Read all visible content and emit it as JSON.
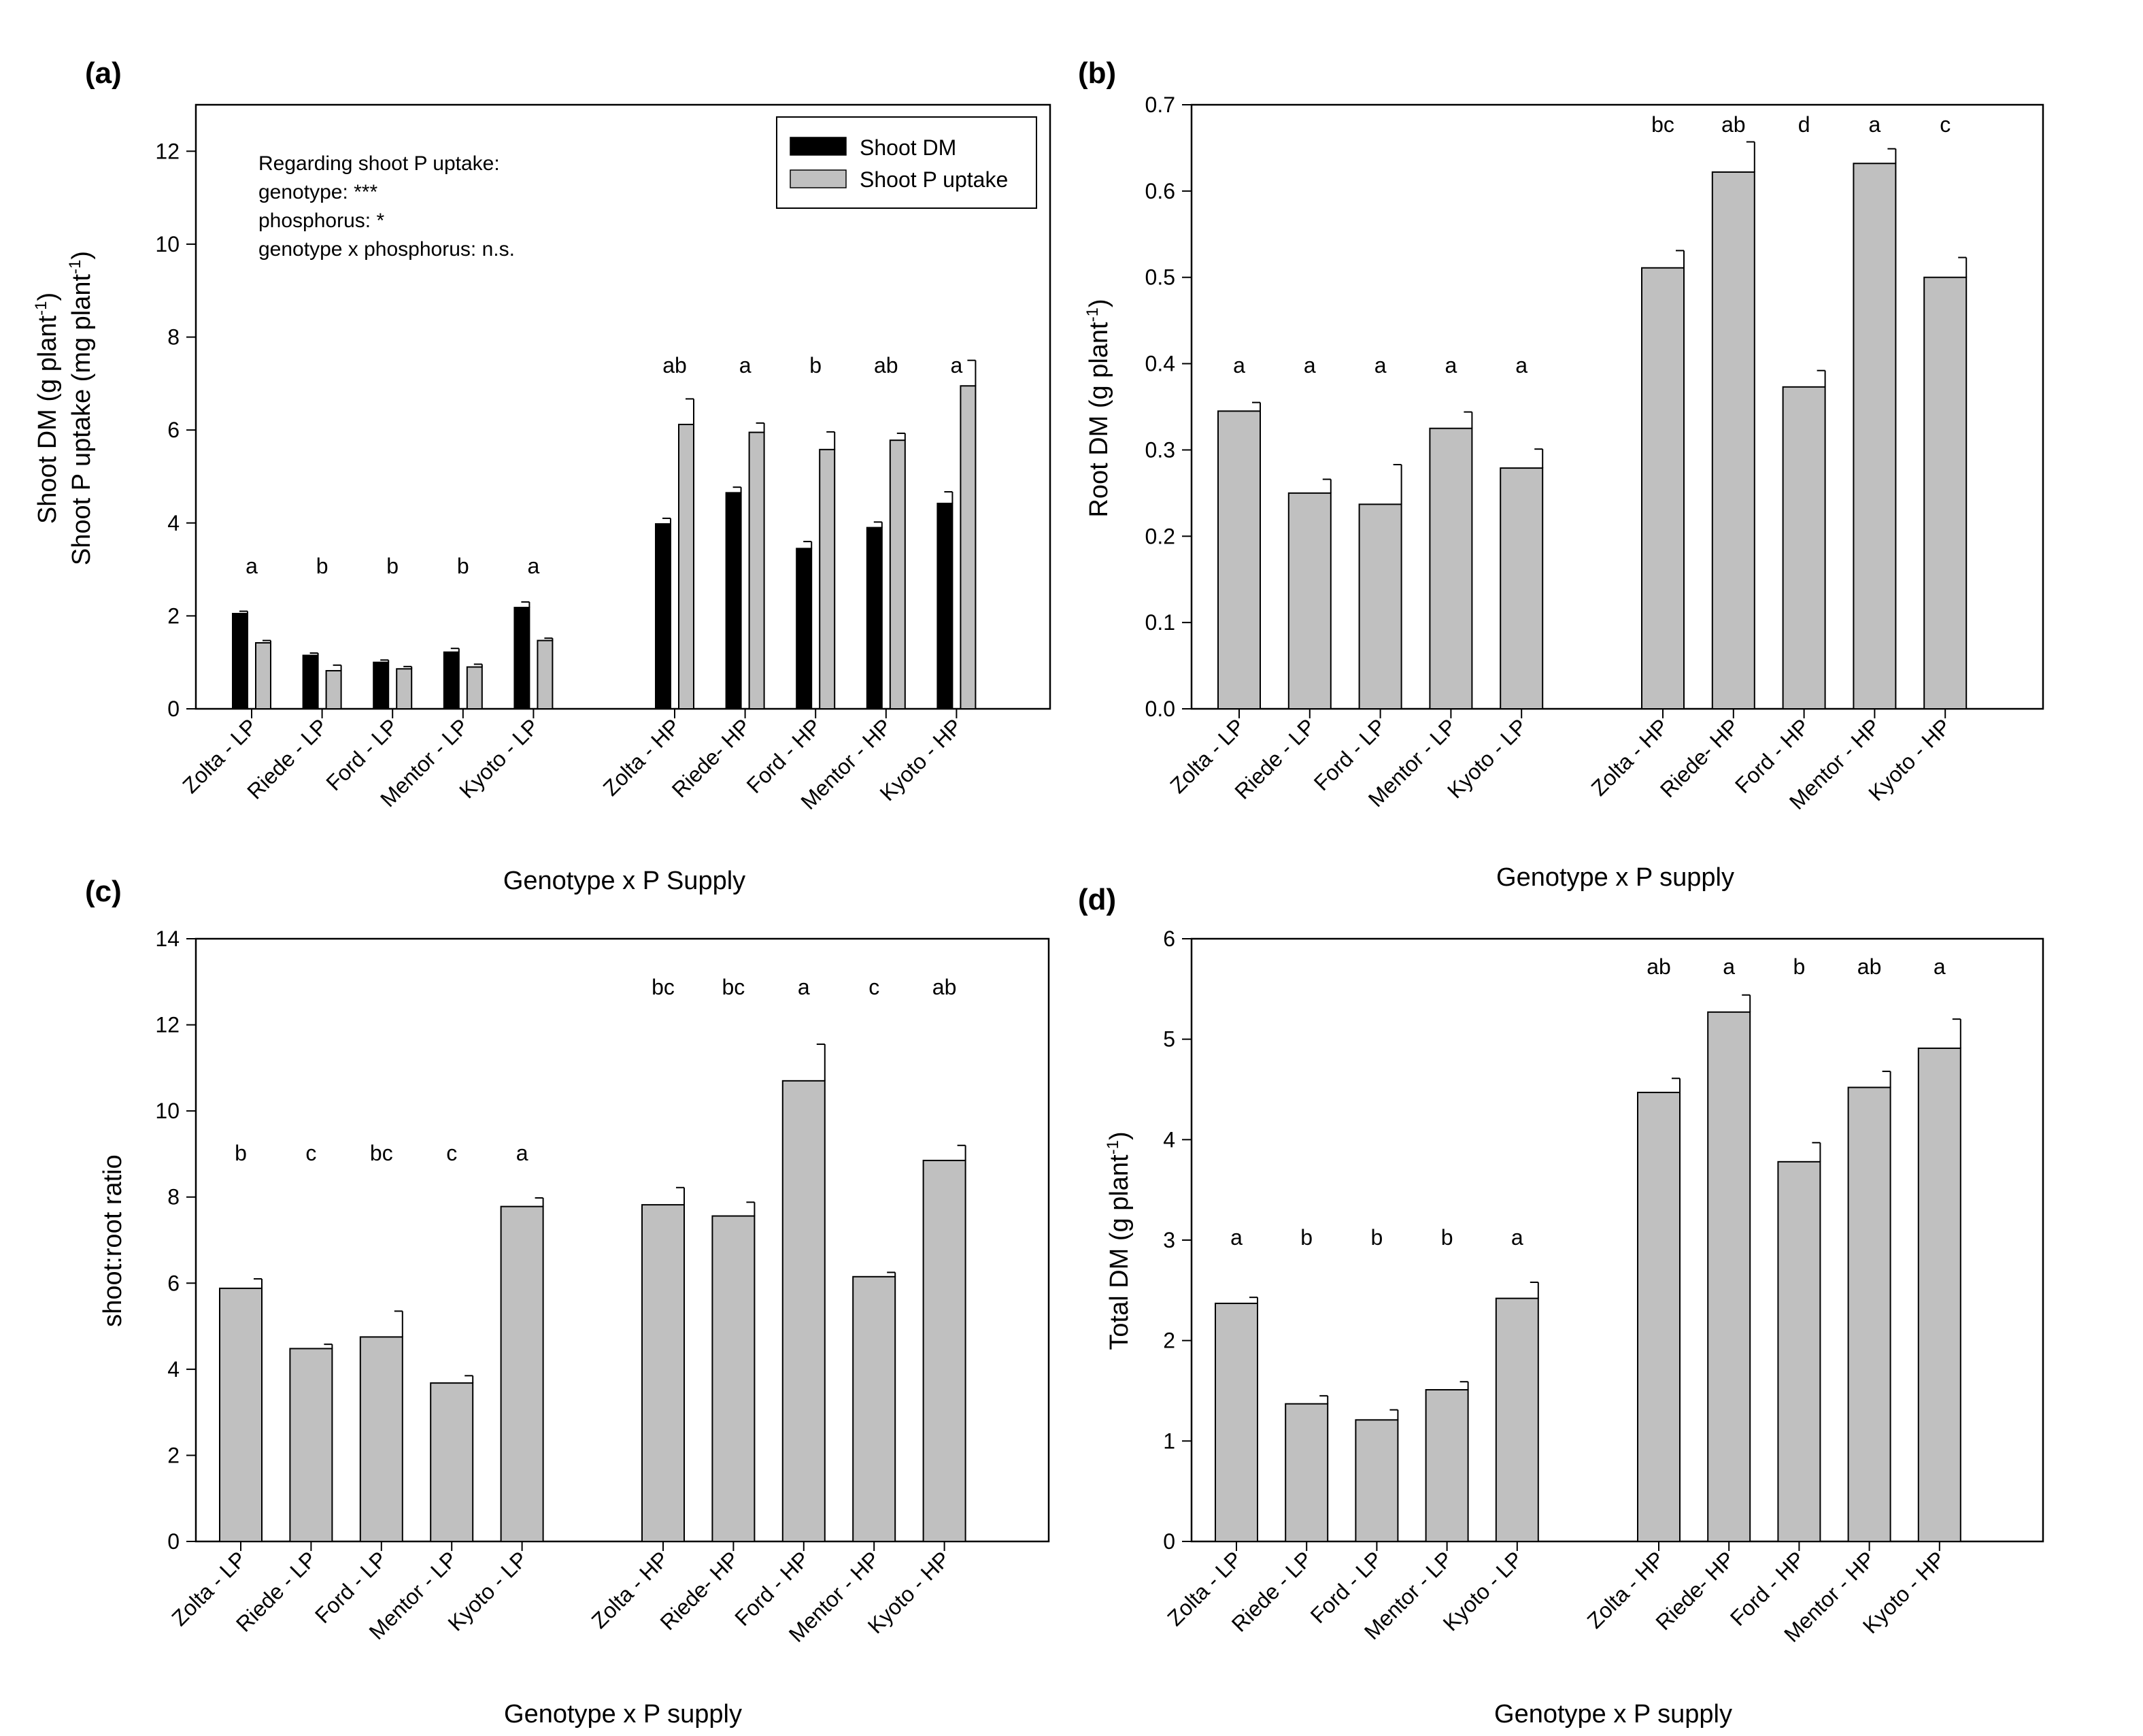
{
  "chart_data": [
    {
      "panel": "(a)",
      "type": "bar",
      "categories": [
        "Zolta - LP",
        "Riede - LP",
        "Ford - LP",
        "Mentor - LP",
        "Kyoto - LP",
        "Zolta - HP",
        "Riede- HP",
        "Ford - HP",
        "Mentor - HP",
        "Kyoto - HP"
      ],
      "group_sizes": [
        5,
        5
      ],
      "series": [
        {
          "name": "Shoot DM",
          "color": "#000000",
          "values": [
            2.05,
            1.15,
            1.0,
            1.22,
            2.18,
            3.98,
            4.65,
            3.45,
            3.9,
            4.42
          ],
          "errors": [
            0.05,
            0.05,
            0.05,
            0.08,
            0.12,
            0.12,
            0.12,
            0.15,
            0.12,
            0.25
          ]
        },
        {
          "name": "Shoot P uptake",
          "color": "#c0c0c0",
          "values": [
            1.42,
            0.82,
            0.86,
            0.9,
            1.47,
            6.12,
            5.95,
            5.58,
            5.78,
            6.95
          ],
          "errors": [
            0.05,
            0.12,
            0.05,
            0.06,
            0.05,
            0.55,
            0.2,
            0.38,
            0.15,
            0.55
          ]
        }
      ],
      "significance": [
        "a",
        "b",
        "b",
        "b",
        "a",
        "ab",
        "a",
        "b",
        "ab",
        "a"
      ],
      "ylim": [
        0,
        13
      ],
      "yticks": [
        0,
        2,
        4,
        6,
        8,
        10,
        12
      ],
      "tick_labels": [
        "0",
        "2",
        "4",
        "6",
        "8",
        "10",
        "12"
      ],
      "ylabel_line1": "Shoot DM (g plant",
      "ylabel_line2": "Shoot P uptake (mg plant",
      "ylabel_sup": "-1",
      "ylabel_close": ")",
      "xlabel": "Genotype x P Supply",
      "annotation": [
        "Regarding shoot P uptake:",
        "genotype: ***",
        "phosphorus: *",
        "genotype x phosphorus: n.s."
      ],
      "legend": [
        "Shoot DM",
        "Shoot P uptake"
      ],
      "legend_position": "top-right"
    },
    {
      "panel": "(b)",
      "type": "bar",
      "categories": [
        "Zolta - LP",
        "Riede - LP",
        "Ford - LP",
        "Mentor - LP",
        "Kyoto - LP",
        "Zolta - HP",
        "Riede- HP",
        "Ford - HP",
        "Mentor - HP",
        "Kyoto - HP"
      ],
      "group_sizes": [
        5,
        5
      ],
      "series": [
        {
          "name": "Root DM",
          "color": "#c0c0c0",
          "values": [
            0.345,
            0.25,
            0.237,
            0.325,
            0.279,
            0.511,
            0.622,
            0.373,
            0.632,
            0.5
          ],
          "errors": [
            0.01,
            0.016,
            0.046,
            0.019,
            0.022,
            0.02,
            0.035,
            0.019,
            0.017,
            0.023
          ]
        }
      ],
      "significance": [
        "a",
        "a",
        "a",
        "a",
        "a",
        "bc",
        "ab",
        "d",
        "a",
        "c"
      ],
      "ylim": [
        0,
        0.7
      ],
      "yticks": [
        0,
        0.1,
        0.2,
        0.3,
        0.4,
        0.5,
        0.6,
        0.7
      ],
      "tick_labels": [
        "0.0",
        "0.1",
        "0.2",
        "0.3",
        "0.4",
        "0.5",
        "0.6",
        "0.7"
      ],
      "ylabel_line1": "Root DM (g plant",
      "ylabel_sup": "-1",
      "ylabel_close": ")",
      "xlabel": "Genotype x P supply"
    },
    {
      "panel": "(c)",
      "type": "bar",
      "categories": [
        "Zolta - LP",
        "Riede - LP",
        "Ford - LP",
        "Mentor - LP",
        "Kyoto - LP",
        "Zolta - HP",
        "Riede- HP",
        "Ford - HP",
        "Mentor - HP",
        "Kyoto - HP"
      ],
      "group_sizes": [
        5,
        5
      ],
      "series": [
        {
          "name": "shoot:root ratio",
          "color": "#c0c0c0",
          "values": [
            5.88,
            4.48,
            4.75,
            3.68,
            7.78,
            7.82,
            7.56,
            10.7,
            6.15,
            8.85
          ],
          "errors": [
            0.22,
            0.1,
            0.6,
            0.17,
            0.2,
            0.4,
            0.32,
            0.85,
            0.1,
            0.35
          ]
        }
      ],
      "significance": [
        "b",
        "c",
        "bc",
        "c",
        "a",
        "bc",
        "bc",
        "a",
        "c",
        "ab"
      ],
      "significance_row": "low",
      "ylim": [
        0,
        14
      ],
      "yticks": [
        0,
        2,
        4,
        6,
        8,
        10,
        12,
        14
      ],
      "tick_labels": [
        "0",
        "2",
        "4",
        "6",
        "8",
        "10",
        "12",
        "14"
      ],
      "ylabel_line1": "shoot:root ratio",
      "xlabel": "Genotype x P supply"
    },
    {
      "panel": "(d)",
      "type": "bar",
      "categories": [
        "Zolta - LP",
        "Riede - LP",
        "Ford - LP",
        "Mentor - LP",
        "Kyoto - LP",
        "Zolta - HP",
        "Riede- HP",
        "Ford - HP",
        "Mentor - HP",
        "Kyoto - HP"
      ],
      "group_sizes": [
        5,
        5
      ],
      "series": [
        {
          "name": "Total DM",
          "color": "#c0c0c0",
          "values": [
            2.37,
            1.37,
            1.21,
            1.51,
            2.42,
            4.47,
            5.27,
            3.78,
            4.52,
            4.91
          ],
          "errors": [
            0.06,
            0.08,
            0.1,
            0.08,
            0.16,
            0.14,
            0.17,
            0.19,
            0.16,
            0.29
          ]
        }
      ],
      "significance": [
        "a",
        "b",
        "b",
        "b",
        "a",
        "ab",
        "a",
        "b",
        "ab",
        "a"
      ],
      "ylim": [
        0,
        6
      ],
      "yticks": [
        0,
        1,
        2,
        3,
        4,
        5,
        6
      ],
      "tick_labels": [
        "0",
        "1",
        "2",
        "3",
        "4",
        "5",
        "6"
      ],
      "ylabel_line1": "Total DM (g plant",
      "ylabel_sup": "-1",
      "ylabel_close": ")",
      "xlabel": "Genotype x P supply"
    }
  ]
}
